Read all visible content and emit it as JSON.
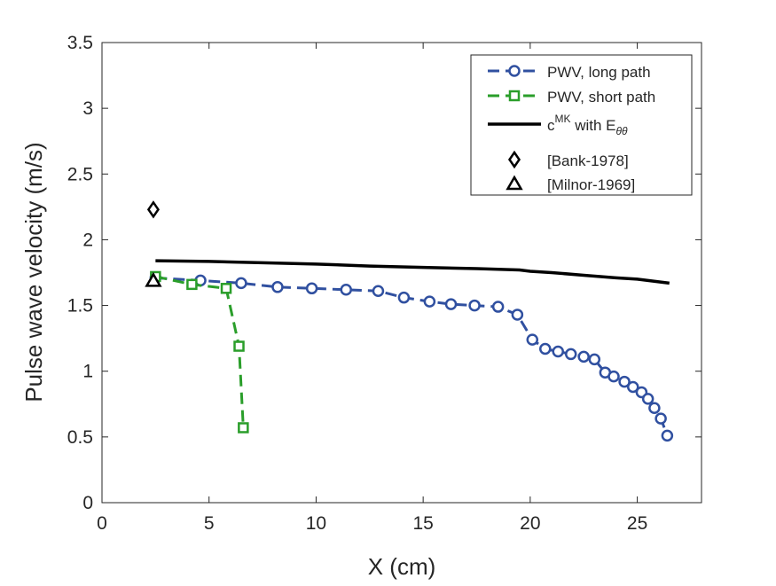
{
  "chart_data": {
    "type": "line",
    "xlabel": "X (cm)",
    "ylabel": "Pulse wave velocity (m/s)",
    "xlim": [
      0,
      28
    ],
    "ylim": [
      0,
      3.5
    ],
    "xticks": [
      0,
      5,
      10,
      15,
      20,
      25
    ],
    "yticks": [
      0,
      0.5,
      1,
      1.5,
      2,
      2.5,
      3,
      3.5
    ],
    "xtick_labels": [
      "0",
      "5",
      "10",
      "15",
      "20",
      "25"
    ],
    "ytick_labels": [
      "0",
      "0.5",
      "1",
      "1.5",
      "2",
      "2.5",
      "3",
      "3.5"
    ],
    "grid": false,
    "legend_position": "top-right",
    "series": [
      {
        "name": "PWV, long path",
        "style": "dashed-circle",
        "color": "#3050a0",
        "x": [
          2.5,
          4.6,
          6.5,
          8.2,
          9.8,
          11.4,
          12.9,
          14.1,
          15.3,
          16.3,
          17.4,
          18.5,
          19.4,
          20.1,
          20.7,
          21.3,
          21.9,
          22.5,
          23.0,
          23.5,
          23.9,
          24.4,
          24.8,
          25.2,
          25.5,
          25.8,
          26.1,
          26.4
        ],
        "y": [
          1.71,
          1.69,
          1.67,
          1.64,
          1.63,
          1.62,
          1.61,
          1.56,
          1.53,
          1.51,
          1.5,
          1.49,
          1.43,
          1.24,
          1.17,
          1.15,
          1.13,
          1.11,
          1.09,
          0.99,
          0.96,
          0.92,
          0.88,
          0.84,
          0.79,
          0.72,
          0.64,
          0.51
        ]
      },
      {
        "name": "PWV, short path",
        "style": "dashed-square",
        "color": "#2a9e2a",
        "x": [
          2.5,
          4.2,
          5.8,
          6.4,
          6.6
        ],
        "y": [
          1.72,
          1.66,
          1.63,
          1.19,
          0.57
        ]
      },
      {
        "name": "with",
        "name_base": "c",
        "name_sup": "MK",
        "name_mid": "with E",
        "name_sub": "θθ",
        "style": "solid",
        "color": "#000000",
        "x": [
          2.5,
          5,
          7.5,
          10,
          12.5,
          15,
          17.5,
          19.5,
          20.0,
          21,
          22.5,
          24,
          25,
          26,
          26.5
        ],
        "y": [
          1.84,
          1.835,
          1.825,
          1.815,
          1.8,
          1.79,
          1.78,
          1.77,
          1.76,
          1.75,
          1.73,
          1.71,
          1.7,
          1.68,
          1.67
        ]
      },
      {
        "name": "[Bank-1978]",
        "style": "diamond",
        "color": "#000000",
        "x": [
          2.4
        ],
        "y": [
          2.23
        ]
      },
      {
        "name": "[Milnor-1969]",
        "style": "triangle",
        "color": "#000000",
        "x": [
          2.4
        ],
        "y": [
          1.69
        ]
      }
    ]
  }
}
